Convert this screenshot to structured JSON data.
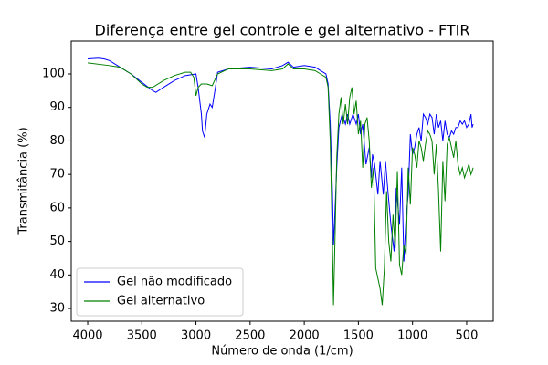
{
  "chart_data": {
    "type": "line",
    "title": "Diferença entre gel controle e gel alternativo - FTIR",
    "x_label": "Número de onda (1/cm)",
    "y_label": "Transmitância (%)",
    "xlim": [
      4152,
      255
    ],
    "ylim": [
      26.2,
      109.8
    ],
    "xticks": [
      4000,
      3500,
      3000,
      2500,
      2000,
      1500,
      1000,
      500
    ],
    "yticks": [
      30,
      40,
      50,
      60,
      70,
      80,
      90,
      100
    ],
    "legend": "lower left",
    "series": [
      {
        "name": "Gel não modificado",
        "color": "#0000ff",
        "x": [
          4000,
          3900,
          3850,
          3800,
          3700,
          3600,
          3500,
          3400,
          3370,
          3300,
          3200,
          3100,
          3000,
          2980,
          2950,
          2940,
          2920,
          2900,
          2870,
          2850,
          2820,
          2800,
          2700,
          2500,
          2300,
          2200,
          2150,
          2100,
          2000,
          1900,
          1850,
          1800,
          1780,
          1760,
          1740,
          1730,
          1720,
          1700,
          1680,
          1650,
          1620,
          1600,
          1580,
          1550,
          1520,
          1500,
          1480,
          1460,
          1430,
          1400,
          1380,
          1370,
          1350,
          1320,
          1300,
          1270,
          1250,
          1230,
          1200,
          1170,
          1150,
          1120,
          1100,
          1080,
          1060,
          1040,
          1020,
          1000,
          980,
          960,
          940,
          920,
          900,
          880,
          860,
          840,
          820,
          800,
          780,
          760,
          740,
          720,
          700,
          680,
          660,
          640,
          620,
          600,
          580,
          560,
          540,
          520,
          500,
          480,
          460,
          450,
          440
        ],
        "values": [
          104.5,
          104.7,
          104.5,
          104,
          102,
          100,
          97.5,
          95,
          94.5,
          96,
          98,
          99.5,
          100,
          96,
          88,
          83,
          81,
          88,
          91,
          90,
          96,
          100.5,
          101.5,
          102,
          101.5,
          102.5,
          103.5,
          102,
          102.5,
          102,
          101,
          100,
          97,
          85,
          65,
          49,
          56,
          72,
          84,
          88,
          85,
          88,
          85,
          88,
          85,
          88,
          82,
          85,
          73,
          78,
          69,
          76,
          73,
          64,
          74,
          64,
          74,
          66,
          55,
          47,
          66,
          55,
          72,
          44,
          57,
          64,
          82,
          76,
          78,
          82,
          84,
          80,
          88,
          87,
          85,
          88,
          87,
          82,
          88,
          84,
          86,
          80,
          86,
          82,
          81,
          83,
          82,
          84,
          84,
          86,
          85,
          86,
          84,
          85,
          88,
          84,
          85
        ]
      },
      {
        "name": "Gel alternativo",
        "color": "#008000",
        "x": [
          4000,
          3800,
          3700,
          3600,
          3500,
          3450,
          3400,
          3300,
          3200,
          3100,
          3050,
          3020,
          3000,
          2980,
          2950,
          2900,
          2850,
          2800,
          2700,
          2500,
          2300,
          2200,
          2150,
          2100,
          2000,
          1900,
          1850,
          1800,
          1780,
          1760,
          1740,
          1730,
          1720,
          1700,
          1680,
          1660,
          1640,
          1620,
          1600,
          1580,
          1560,
          1540,
          1520,
          1500,
          1480,
          1460,
          1440,
          1420,
          1400,
          1380,
          1360,
          1340,
          1320,
          1300,
          1280,
          1260,
          1240,
          1220,
          1200,
          1180,
          1160,
          1140,
          1120,
          1100,
          1080,
          1060,
          1040,
          1020,
          1000,
          980,
          960,
          940,
          920,
          900,
          880,
          860,
          840,
          820,
          800,
          780,
          760,
          740,
          720,
          700,
          680,
          660,
          640,
          620,
          600,
          580,
          560,
          540,
          520,
          500,
          480,
          460,
          440
        ],
        "values": [
          103.3,
          102.5,
          102,
          100,
          97,
          96,
          96,
          98,
          99.5,
          100.5,
          100.5,
          99,
          93.5,
          96,
          97,
          97,
          96.5,
          100,
          101.5,
          101.5,
          101,
          101.5,
          103,
          101.5,
          101.5,
          101,
          100,
          99,
          96,
          80,
          50,
          31,
          45,
          75,
          88,
          93,
          85,
          91,
          85,
          93,
          96,
          88,
          92,
          82,
          86,
          72,
          85,
          87,
          80,
          66,
          72,
          42,
          39,
          36,
          31,
          42,
          65,
          50,
          44,
          58,
          48,
          71,
          43,
          40,
          49,
          46,
          72,
          61,
          78,
          76,
          72,
          80,
          78,
          74,
          79,
          83,
          82,
          80,
          70,
          79,
          65,
          47,
          74,
          62,
          79,
          81,
          78,
          75,
          80,
          73,
          70,
          72,
          69,
          71,
          73,
          70,
          72
        ]
      }
    ]
  }
}
